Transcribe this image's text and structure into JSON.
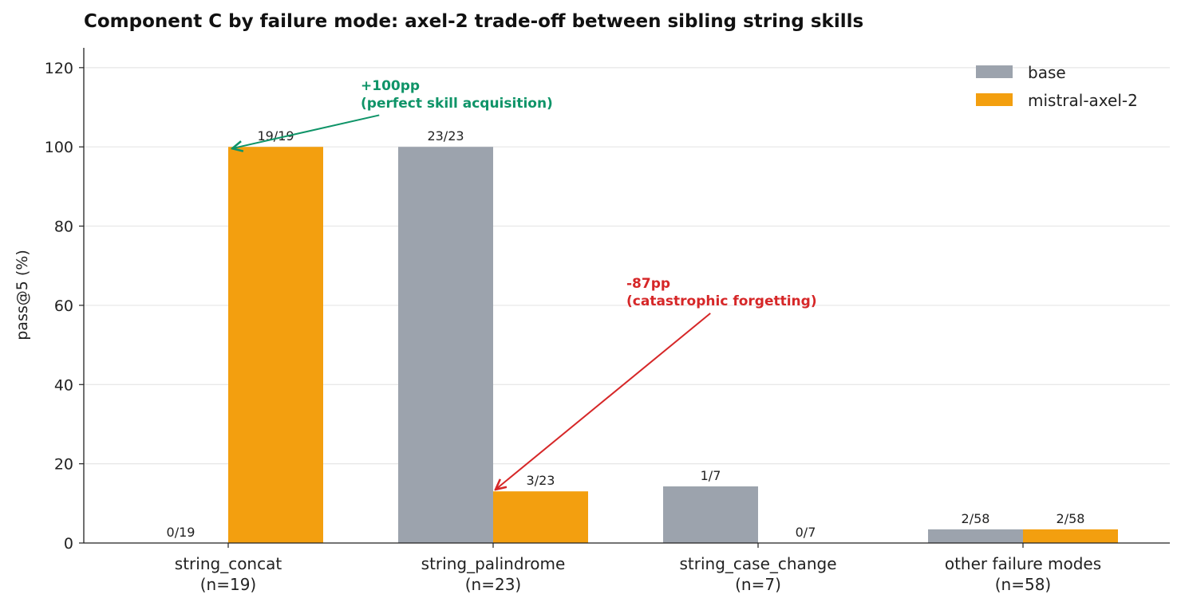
{
  "chart_data": {
    "type": "bar",
    "title": "Component C by failure mode: axel-2 trade-off between sibling string skills",
    "xlabel": "",
    "ylabel": "pass@5 (%)",
    "ylim": [
      0,
      125
    ],
    "yticks": [
      0,
      20,
      40,
      60,
      80,
      100,
      120
    ],
    "grid": "horizontal",
    "legend_position": "top-right",
    "categories": [
      [
        "string_concat",
        "(n=19)"
      ],
      [
        "string_palindrome",
        "(n=23)"
      ],
      [
        "string_case_change",
        "(n=7)"
      ],
      [
        "other failure modes",
        "(n=58)"
      ]
    ],
    "series": [
      {
        "name": "base",
        "color": "#9ca3ad",
        "values": [
          0,
          100,
          14.29,
          3.45
        ],
        "labels": [
          "0/19",
          "23/23",
          "1/7",
          "2/58"
        ]
      },
      {
        "name": "mistral-axel-2",
        "color": "#f39f0f",
        "values": [
          100,
          13.04,
          0,
          3.45
        ],
        "labels": [
          "19/19",
          "3/23",
          "0/7",
          "2/58"
        ]
      }
    ],
    "annotations": [
      {
        "lines": [
          "+100pp",
          "(perfect skill acquisition)"
        ],
        "color": "#0f9468",
        "text_at": [
          0.5,
          111
        ],
        "arrow_to": [
          0.0,
          100
        ],
        "arrow_from": [
          0.57,
          108
        ]
      },
      {
        "lines": [
          "-87pp",
          "(catastrophic forgetting)"
        ],
        "color": "#d62728",
        "text_at": [
          1.5,
          61
        ],
        "arrow_to": [
          1.0,
          13.5
        ],
        "arrow_from": [
          1.82,
          58
        ]
      }
    ]
  }
}
